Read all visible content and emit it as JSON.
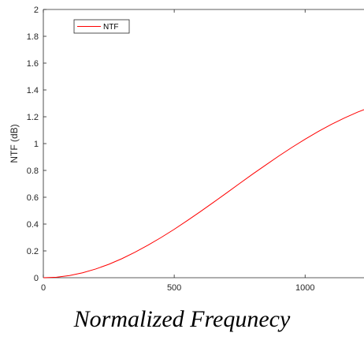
{
  "chart_data": {
    "type": "line",
    "title": "",
    "xlabel": "Normalized Frequnecy",
    "ylabel": "NTF (dB)",
    "xlim": [
      0,
      1225
    ],
    "ylim": [
      0,
      2
    ],
    "xticks": [
      0,
      500,
      1000
    ],
    "yticks": [
      0,
      0.2,
      0.4,
      0.6,
      0.8,
      1,
      1.2,
      1.4,
      1.6,
      1.8,
      2
    ],
    "ytick_labels": [
      "0",
      "0.2",
      "0.4",
      "0.6",
      "0.8",
      "1",
      "1.2",
      "1.4",
      "1.6",
      "1.8",
      "2"
    ],
    "grid": false,
    "legend_position": "top-left",
    "series": [
      {
        "name": "NTF",
        "color": "#ff0000",
        "x": [
          0,
          50,
          100,
          150,
          200,
          250,
          300,
          350,
          400,
          450,
          500,
          550,
          600,
          650,
          700,
          750,
          800,
          850,
          900,
          950,
          1000,
          1050,
          1100,
          1150,
          1200,
          1225
        ],
        "y": [
          0,
          0.004,
          0.016,
          0.037,
          0.065,
          0.1,
          0.142,
          0.19,
          0.243,
          0.3,
          0.361,
          0.426,
          0.493,
          0.562,
          0.632,
          0.703,
          0.773,
          0.841,
          0.908,
          0.972,
          1.033,
          1.09,
          1.143,
          1.191,
          1.234,
          1.253
        ]
      }
    ]
  }
}
